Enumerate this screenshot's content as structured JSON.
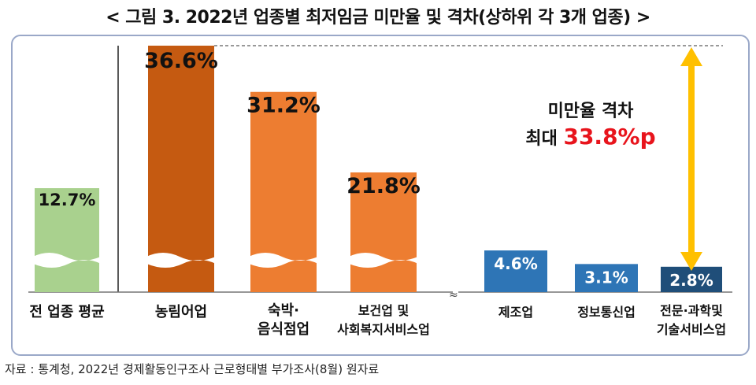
{
  "title": "< 그림 3. 2022년 업종별 최저임금 미만율 및 격차(상하위 각 3개 업종) >",
  "source": "자료 : 통계청, 2022년 경제활동인구조사 근로형태별 부가조사(8월) 원자료",
  "annotation": {
    "line1": "미만율 격차",
    "prefix": "최대 ",
    "value": "33.8%p"
  },
  "colors": {
    "average": "#a9d18e",
    "top": "#c55a11",
    "upper": "#ed7d31",
    "lower": "#2e75b6",
    "lowest": "#1f4e79",
    "gap_arrow": "#ffc000",
    "annotation_value": "#e8141c"
  },
  "chart_data": {
    "type": "bar",
    "title": "",
    "xlabel": "",
    "ylabel": "",
    "axis_broken": true,
    "grid": false,
    "legend": "none",
    "categories": [
      "전 업종 평균",
      "농림어업",
      "숙박·\n음식점업",
      "보건업 및\n사회복지서비스업",
      "제조업",
      "정보통신업",
      "전문·과학및\n기술서비스업"
    ],
    "values": [
      12.7,
      36.6,
      31.2,
      21.8,
      4.6,
      3.1,
      2.8
    ],
    "value_labels": [
      "12.7%",
      "36.6%",
      "31.2%",
      "21.8%",
      "4.6%",
      "3.1%",
      "2.8%"
    ],
    "unit": "%",
    "groups": [
      "average",
      "top",
      "upper",
      "upper",
      "lower",
      "lower",
      "lowest"
    ]
  }
}
